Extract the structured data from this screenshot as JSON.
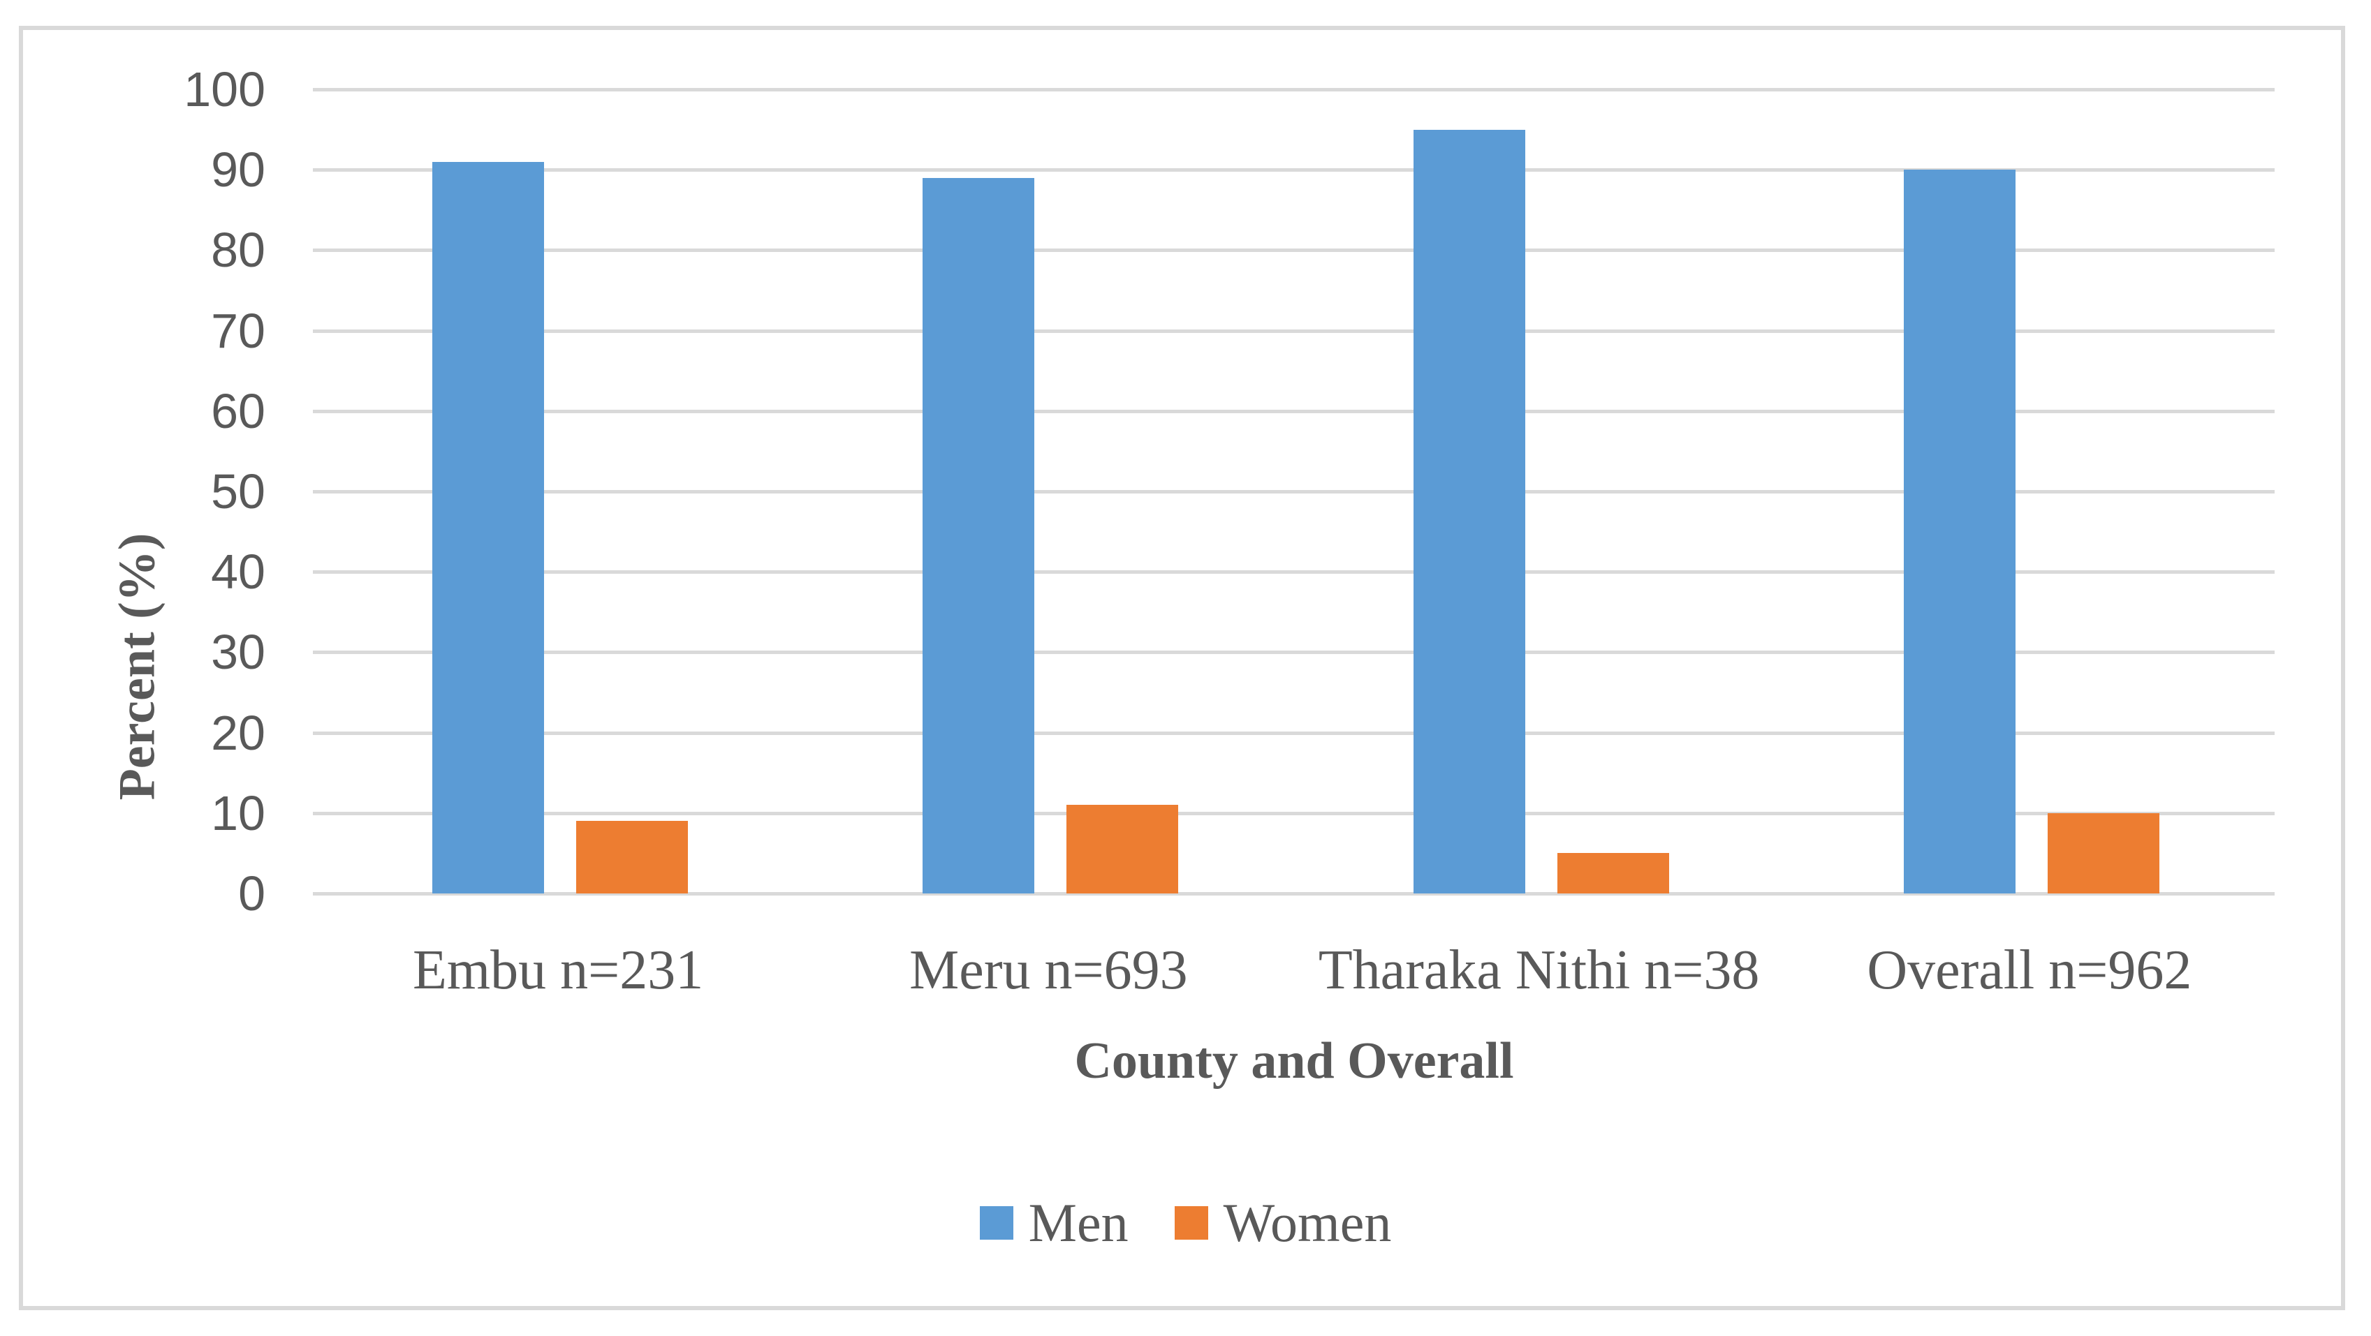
{
  "chart_data": {
    "type": "bar",
    "title": "",
    "categories": [
      "Embu n=231",
      "Meru n=693",
      "Tharaka Nithi n=38",
      "Overall n=962"
    ],
    "series": [
      {
        "name": "Men",
        "color": "#5B9BD5",
        "values": [
          91,
          89,
          95,
          90
        ]
      },
      {
        "name": "Women",
        "color": "#ED7D31",
        "values": [
          9,
          11,
          5,
          10
        ]
      }
    ],
    "xlabel": "County and Overall",
    "ylabel": "Percent (%)",
    "ylim": [
      0,
      100
    ],
    "ytick_step": 10,
    "grid": "horizontal",
    "gridline_color": "#D9D9D9",
    "axis_line_color": "#D9D9D9",
    "text_color": "#595959",
    "border_color": "#D9D9D9",
    "background": "#FFFFFF",
    "legend_position": "bottom"
  }
}
